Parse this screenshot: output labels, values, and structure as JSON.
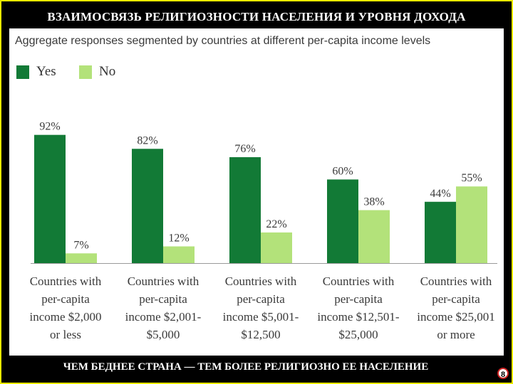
{
  "slide": {
    "title": "ВЗАИМОСВЯЗЬ РЕЛИГИОЗНОСТИ НАСЕЛЕНИЯ И УРОВНЯ ДОХОДА",
    "footer": "ЧЕМ БЕДНЕЕ СТРАНА — ТЕМ БОЛЕЕ РЕЛИГИОЗНО ЕЕ НАСЕЛЕНИЕ",
    "page_number": "8"
  },
  "colors": {
    "yes": "#127a36",
    "no": "#b3e27a",
    "frame": "#e8e800"
  },
  "chart_data": {
    "type": "bar",
    "title": "Aggregate responses segmented by countries at different per-capita income levels",
    "categories": [
      [
        "Countries with",
        "per-capita",
        "income $2,000",
        "or less"
      ],
      [
        "Countries with",
        "per-capita",
        "income $2,001-",
        "$5,000"
      ],
      [
        "Countries with",
        "per-capita",
        "income $5,001-",
        "$12,500"
      ],
      [
        "Countries with",
        "per-capita",
        "income $12,501-",
        "$25,000"
      ],
      [
        "Countries with",
        "per-capita",
        "income $25,001",
        "or more"
      ]
    ],
    "series": [
      {
        "name": "Yes",
        "values": [
          92,
          82,
          76,
          60,
          44
        ],
        "labels": [
          "92%",
          "82%",
          "76%",
          "60%",
          "44%"
        ]
      },
      {
        "name": "No",
        "values": [
          7,
          12,
          22,
          38,
          55
        ],
        "labels": [
          "7%",
          "12%",
          "22%",
          "38%",
          "55%"
        ]
      }
    ],
    "ylim": [
      0,
      100
    ],
    "legend": "top-left",
    "grid": false
  }
}
